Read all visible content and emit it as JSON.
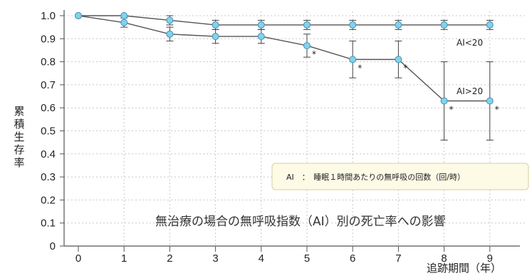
{
  "chart_data": {
    "type": "line",
    "x": [
      0,
      1,
      2,
      3,
      4,
      5,
      6,
      7,
      8,
      9
    ],
    "xlabel": "追跡期間（年）",
    "ylabel": "累積生存率",
    "ylim": [
      0,
      1.0
    ],
    "yticks": [
      "0",
      "0.1",
      "0.2",
      "0.3",
      "0.4",
      "0.5",
      "0.6",
      "0.7",
      "0.8",
      "0.9",
      "1.0"
    ],
    "xticks": [
      "0",
      "1",
      "2",
      "3",
      "4",
      "5",
      "6",
      "7",
      "8",
      "9"
    ],
    "grid": true,
    "caption": "無治療の場合の無呼吸指数（AI）別の死亡率への影響",
    "legend_note": "AI　：　睡眠１時間あたりの無呼吸の回数（回/時）",
    "series": [
      {
        "name": "AI<20",
        "color": "#555555",
        "values": [
          1.0,
          1.0,
          0.98,
          0.96,
          0.96,
          0.96,
          0.96,
          0.96,
          0.96,
          0.96
        ],
        "err_low": [
          null,
          null,
          0.96,
          0.94,
          0.94,
          0.94,
          0.94,
          0.94,
          0.94,
          0.94
        ],
        "err_high": [
          null,
          null,
          1.0,
          0.98,
          0.98,
          0.98,
          0.98,
          0.98,
          0.98,
          0.98
        ]
      },
      {
        "name": "AI>20",
        "color": "#555555",
        "values": [
          1.0,
          0.97,
          0.92,
          0.91,
          0.91,
          0.87,
          0.81,
          0.81,
          0.63,
          0.63
        ],
        "err_low": [
          null,
          0.95,
          0.89,
          0.88,
          0.88,
          0.82,
          0.73,
          0.73,
          0.46,
          0.46
        ],
        "err_high": [
          null,
          0.99,
          0.95,
          0.94,
          0.94,
          0.92,
          0.89,
          0.89,
          0.8,
          0.8
        ],
        "significant": [
          false,
          false,
          false,
          false,
          false,
          true,
          true,
          true,
          true,
          true
        ]
      }
    ],
    "marker_color": "#7fd3ee",
    "significance_mark": "*"
  }
}
